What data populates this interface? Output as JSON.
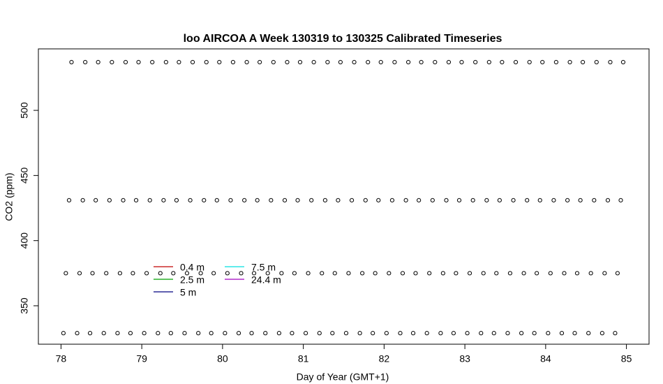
{
  "chart_data": {
    "type": "scatter",
    "title": "loo AIRCOA A  Week 130319 to 130325  Calibrated Timeseries",
    "x_label": "Day of Year (GMT+1)",
    "y_label": "CO2 (ppm)",
    "xlim": [
      77.72,
      85.28
    ],
    "ylim": [
      320.5,
      547.2
    ],
    "xticks": [
      78,
      79,
      80,
      81,
      82,
      83,
      84,
      85
    ],
    "yticks": [
      350,
      400,
      450,
      500
    ],
    "series": [
      {
        "color": "#000000",
        "x": [
          78.03,
          78.2,
          78.36,
          78.53,
          78.7,
          78.86,
          79.03,
          79.2,
          79.36,
          79.53,
          79.7,
          79.86,
          80.03,
          80.2,
          80.36,
          80.53,
          80.7,
          80.86,
          81.03,
          81.2,
          81.36,
          81.53,
          81.7,
          81.86,
          82.03,
          82.2,
          82.36,
          82.53,
          82.7,
          82.86,
          83.03,
          83.2,
          83.36,
          83.53,
          83.7,
          83.86,
          84.03,
          84.2,
          84.36,
          84.53,
          84.7,
          84.86
        ],
        "values": [
          329,
          329,
          329,
          329,
          329,
          329,
          329,
          329,
          329,
          329,
          329,
          329,
          329,
          329,
          329,
          329,
          329,
          329,
          329,
          329,
          329,
          329,
          329,
          329,
          329,
          329,
          329,
          329,
          329,
          329,
          329,
          329,
          329,
          329,
          329,
          329,
          329,
          329,
          329,
          329,
          329,
          329
        ]
      },
      {
        "color": "#000000",
        "x": [
          78.06,
          78.23,
          78.39,
          78.56,
          78.73,
          78.89,
          79.06,
          79.23,
          79.39,
          79.56,
          79.73,
          79.89,
          80.06,
          80.23,
          80.39,
          80.56,
          80.73,
          80.89,
          81.06,
          81.23,
          81.39,
          81.56,
          81.73,
          81.89,
          82.06,
          82.23,
          82.39,
          82.56,
          82.73,
          82.89,
          83.06,
          83.23,
          83.39,
          83.56,
          83.73,
          83.89,
          84.06,
          84.23,
          84.39,
          84.56,
          84.73,
          84.89
        ],
        "values": [
          375,
          375,
          375,
          375,
          375,
          375,
          375,
          375,
          375,
          375,
          375,
          375,
          375,
          375,
          375,
          375,
          375,
          375,
          375,
          375,
          375,
          375,
          375,
          375,
          375,
          375,
          375,
          375,
          375,
          375,
          375,
          375,
          375,
          375,
          375,
          375,
          375,
          375,
          375,
          375,
          375,
          375
        ]
      },
      {
        "color": "#000000",
        "x": [
          78.1,
          78.27,
          78.43,
          78.6,
          78.77,
          78.93,
          79.1,
          79.27,
          79.43,
          79.6,
          79.77,
          79.93,
          80.1,
          80.27,
          80.43,
          80.6,
          80.77,
          80.93,
          81.1,
          81.27,
          81.43,
          81.6,
          81.77,
          81.93,
          82.1,
          82.27,
          82.43,
          82.6,
          82.77,
          82.93,
          83.1,
          83.27,
          83.43,
          83.6,
          83.77,
          83.93,
          84.1,
          84.27,
          84.43,
          84.6,
          84.77,
          84.93
        ],
        "values": [
          431,
          431,
          431,
          431,
          431,
          431,
          431,
          431,
          431,
          431,
          431,
          431,
          431,
          431,
          431,
          431,
          431,
          431,
          431,
          431,
          431,
          431,
          431,
          431,
          431,
          431,
          431,
          431,
          431,
          431,
          431,
          431,
          431,
          431,
          431,
          431,
          431,
          431,
          431,
          431,
          431,
          431
        ]
      },
      {
        "color": "#000000",
        "x": [
          78.13,
          78.3,
          78.46,
          78.63,
          78.8,
          78.96,
          79.13,
          79.3,
          79.46,
          79.63,
          79.8,
          79.96,
          80.13,
          80.3,
          80.46,
          80.63,
          80.8,
          80.96,
          81.13,
          81.3,
          81.46,
          81.63,
          81.8,
          81.96,
          82.13,
          82.3,
          82.46,
          82.63,
          82.8,
          82.96,
          83.13,
          83.3,
          83.46,
          83.63,
          83.8,
          83.96,
          84.13,
          84.3,
          84.46,
          84.63,
          84.8,
          84.96
        ],
        "values": [
          537,
          537,
          537,
          537,
          537,
          537,
          537,
          537,
          537,
          537,
          537,
          537,
          537,
          537,
          537,
          537,
          537,
          537,
          537,
          537,
          537,
          537,
          537,
          537,
          537,
          537,
          537,
          537,
          537,
          537,
          537,
          537,
          537,
          537,
          537,
          537,
          537,
          537,
          537,
          537,
          537,
          537
        ]
      }
    ],
    "legend": [
      {
        "name": "0.4 m",
        "color": "#c00000"
      },
      {
        "name": "2.5 m",
        "color": "#00a000"
      },
      {
        "name": "5 m",
        "color": "#000080"
      },
      {
        "name": "7.5 m",
        "color": "#00e0e0"
      },
      {
        "name": "24.4 m",
        "color": "#a000c0"
      }
    ]
  }
}
